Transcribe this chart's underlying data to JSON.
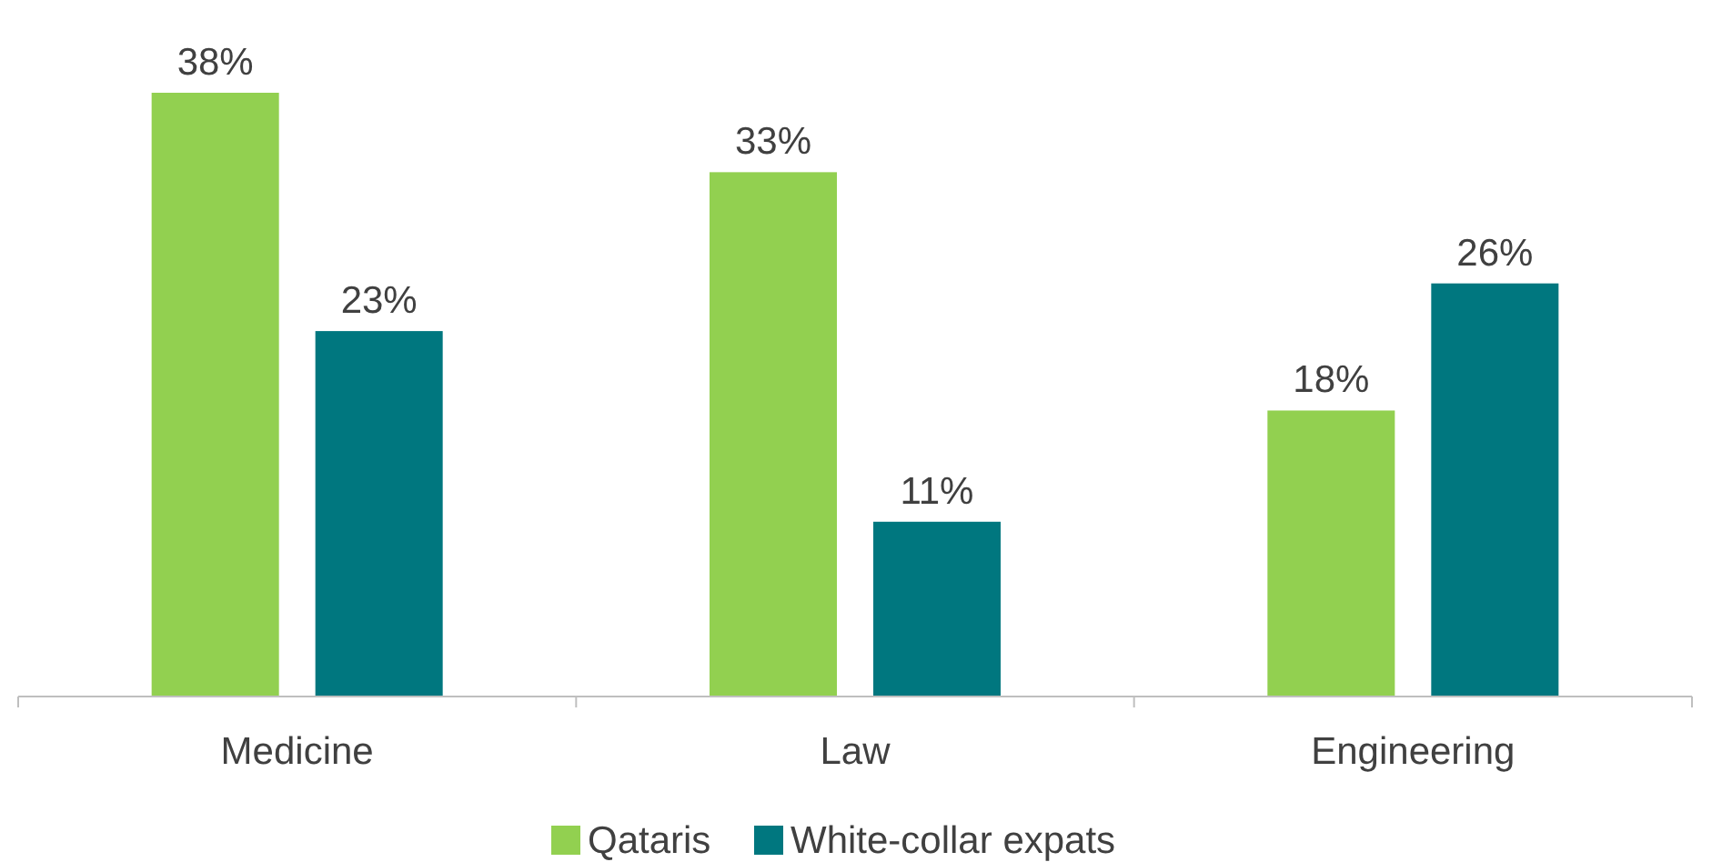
{
  "chart_data": {
    "type": "bar",
    "categories": [
      "Medicine",
      "Law",
      "Engineering"
    ],
    "series": [
      {
        "name": "Qataris",
        "color": "#92d050",
        "values": [
          38,
          33,
          18
        ],
        "value_labels": [
          "38%",
          "33%",
          "18%"
        ]
      },
      {
        "name": "White-collar expats",
        "color": "#00777f",
        "values": [
          23,
          11,
          26
        ],
        "value_labels": [
          "23%",
          "11%",
          "26%"
        ]
      }
    ],
    "tick_labels": "x",
    "legend": "bottom"
  }
}
